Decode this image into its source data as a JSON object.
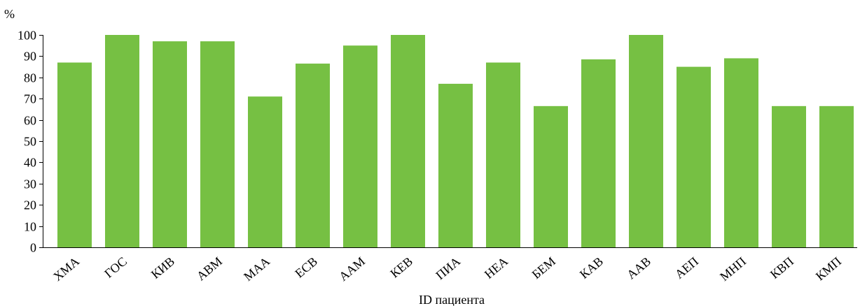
{
  "chart_data": {
    "type": "bar",
    "title": "",
    "ylabel": "%",
    "xlabel": "ID пациента",
    "ylim": [
      0,
      100
    ],
    "yticks": [
      0,
      10,
      20,
      30,
      40,
      50,
      60,
      70,
      80,
      90,
      100
    ],
    "grid": false,
    "bar_color": "#76c043",
    "categories": [
      "ХМА",
      "ГОС",
      "КИВ",
      "АВМ",
      "МАА",
      "ЕСВ",
      "ААМ",
      "КЕВ",
      "ПИА",
      "НЕА",
      "БЕМ",
      "КАВ",
      "ААВ",
      "АЕП",
      "МНП",
      "КВП",
      "КМП"
    ],
    "values": [
      87,
      100,
      97,
      97,
      71,
      86.5,
      95,
      100,
      77,
      87,
      66.5,
      88.5,
      100,
      85,
      89,
      66.5,
      66.5
    ]
  }
}
